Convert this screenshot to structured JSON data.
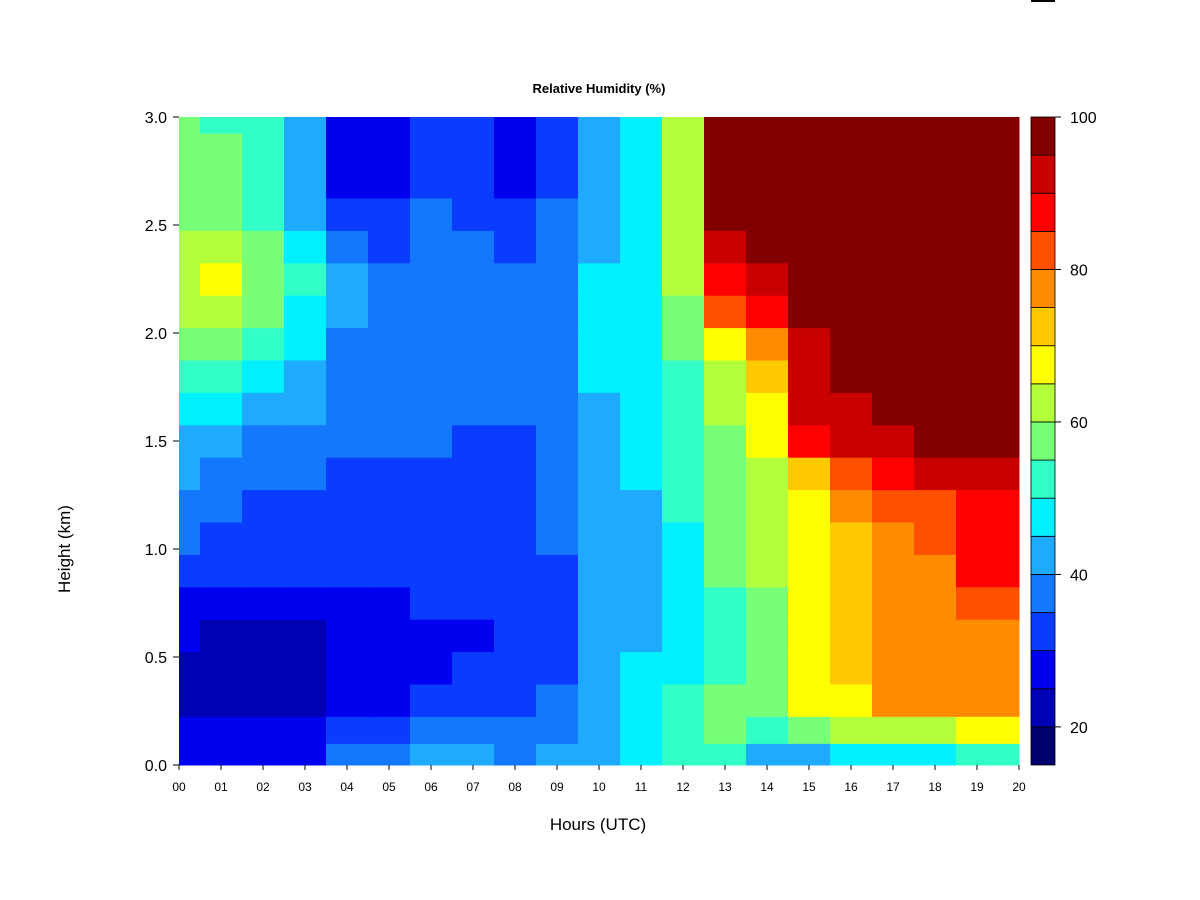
{
  "chart_data": {
    "type": "heatmap",
    "title": "Relative Humidity (%)",
    "xlabel": "Hours (UTC)",
    "ylabel": "Height (km)",
    "xlim": [
      0,
      20
    ],
    "ylim": [
      0.0,
      3.0
    ],
    "x_ticks": [
      "00",
      "01",
      "02",
      "03",
      "04",
      "05",
      "06",
      "07",
      "08",
      "09",
      "10",
      "11",
      "12",
      "13",
      "14",
      "15",
      "16",
      "17",
      "18",
      "19",
      "20"
    ],
    "y_ticks": [
      "0.0",
      "0.5",
      "1.0",
      "1.5",
      "2.0",
      "2.5",
      "3.0"
    ],
    "colorbar": {
      "range": [
        15,
        100
      ],
      "levels": [
        15,
        20,
        25,
        30,
        35,
        40,
        45,
        50,
        55,
        60,
        65,
        70,
        75,
        80,
        85,
        90,
        95,
        100
      ],
      "colors": [
        "#00006e",
        "#0000b4",
        "#0000f0",
        "#0a3cff",
        "#1478ff",
        "#1eaaff",
        "#00f0ff",
        "#32ffc8",
        "#78ff78",
        "#b4ff3c",
        "#ffff00",
        "#ffc800",
        "#ff8c00",
        "#ff5000",
        "#ff0000",
        "#c80000",
        "#820000"
      ],
      "tick_labels": [
        "20",
        "40",
        "60",
        "80",
        "100"
      ]
    },
    "heights_km": [
      0.05,
      0.15,
      0.3,
      0.45,
      0.6,
      0.75,
      0.9,
      1.05,
      1.2,
      1.35,
      1.5,
      1.65,
      1.8,
      1.95,
      2.1,
      2.25,
      2.4,
      2.55,
      2.7,
      2.85,
      3.0
    ],
    "hours": [
      0,
      1,
      2,
      3,
      4,
      5,
      6,
      7,
      8,
      9,
      10,
      11,
      12,
      13,
      14,
      15,
      16,
      17,
      18,
      19,
      20
    ],
    "rh_percent": [
      [
        30,
        28,
        28,
        30,
        36,
        40,
        41,
        41,
        40,
        41,
        44,
        50,
        53,
        55,
        45,
        45,
        46,
        50,
        50,
        52,
        52
      ],
      [
        28,
        26,
        26,
        28,
        32,
        35,
        37,
        38,
        38,
        40,
        44,
        50,
        55,
        58,
        55,
        60,
        62,
        65,
        64,
        68,
        66
      ],
      [
        25,
        23,
        23,
        24,
        27,
        30,
        32,
        33,
        35,
        38,
        43,
        48,
        52,
        56,
        60,
        67,
        70,
        77,
        78,
        80,
        80
      ],
      [
        24,
        23,
        22,
        24,
        27,
        29,
        30,
        31,
        32,
        34,
        42,
        46,
        50,
        55,
        60,
        68,
        71,
        77,
        78,
        80,
        80
      ],
      [
        26,
        25,
        25,
        25,
        27,
        28,
        29,
        30,
        31,
        33,
        42,
        45,
        50,
        55,
        60,
        68,
        71,
        76,
        77,
        79,
        80
      ],
      [
        28,
        27,
        26,
        27,
        29,
        30,
        31,
        31,
        32,
        34,
        42,
        45,
        50,
        55,
        60,
        67,
        72,
        77,
        78,
        82,
        82
      ],
      [
        33,
        32,
        31,
        31,
        32,
        33,
        33,
        33,
        33,
        35,
        43,
        45,
        50,
        56,
        61,
        67,
        73,
        78,
        80,
        87,
        86
      ],
      [
        36,
        35,
        34,
        34,
        34,
        35,
        34,
        34,
        34,
        36,
        43,
        45,
        50,
        57,
        62,
        67,
        75,
        80,
        82,
        88,
        88
      ],
      [
        38,
        37,
        35,
        35,
        34,
        35,
        34,
        34,
        34,
        36,
        43,
        45,
        51,
        58,
        63,
        70,
        78,
        82,
        85,
        90,
        90
      ],
      [
        42,
        40,
        38,
        37,
        35,
        35,
        35,
        35,
        35,
        37,
        44,
        46,
        52,
        59,
        64,
        75,
        85,
        88,
        92,
        95,
        95
      ],
      [
        45,
        43,
        40,
        38,
        36,
        36,
        36,
        35,
        35,
        37,
        44,
        46,
        52,
        60,
        66,
        90,
        92,
        95,
        96,
        97,
        97
      ],
      [
        50,
        48,
        45,
        41,
        37,
        37,
        37,
        36,
        36,
        38,
        45,
        47,
        53,
        62,
        68,
        92,
        95,
        97,
        98,
        99,
        98
      ],
      [
        55,
        54,
        50,
        45,
        38,
        38,
        38,
        37,
        37,
        39,
        46,
        48,
        55,
        65,
        72,
        93,
        97,
        99,
        99,
        99,
        99
      ],
      [
        58,
        58,
        55,
        48,
        40,
        39,
        38,
        38,
        38,
        40,
        47,
        49,
        57,
        70,
        78,
        92,
        99,
        100,
        100,
        100,
        100
      ],
      [
        62,
        62,
        58,
        50,
        41,
        39,
        38,
        38,
        37,
        40,
        47,
        50,
        60,
        85,
        90,
        99,
        100,
        100,
        100,
        100,
        100
      ],
      [
        65,
        66,
        60,
        52,
        41,
        39,
        38,
        37,
        36,
        39,
        46,
        50,
        62,
        90,
        95,
        100,
        100,
        100,
        100,
        100,
        100
      ],
      [
        62,
        63,
        58,
        49,
        36,
        35,
        37,
        36,
        34,
        38,
        45,
        50,
        63,
        93,
        98,
        100,
        100,
        100,
        100,
        100,
        100
      ],
      [
        58,
        58,
        55,
        45,
        31,
        32,
        36,
        35,
        31,
        36,
        44,
        50,
        64,
        96,
        100,
        100,
        100,
        100,
        100,
        100,
        100
      ],
      [
        58,
        57,
        53,
        43,
        29,
        30,
        35,
        34,
        29,
        35,
        43,
        50,
        64,
        100,
        100,
        100,
        100,
        100,
        100,
        100,
        100
      ],
      [
        57,
        56,
        52,
        42,
        27,
        29,
        34,
        33,
        28,
        34,
        43,
        50,
        65,
        100,
        100,
        100,
        100,
        100,
        100,
        100,
        100
      ],
      [
        56,
        55,
        51,
        41,
        26,
        28,
        33,
        32,
        27,
        33,
        42,
        50,
        65,
        100,
        100,
        100,
        100,
        100,
        100,
        100,
        100
      ]
    ]
  }
}
